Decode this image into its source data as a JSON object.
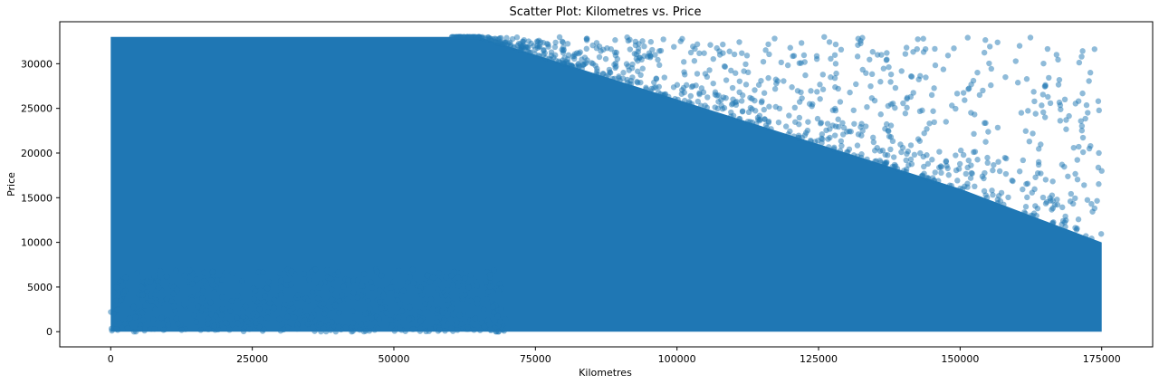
{
  "chart_data": {
    "type": "scatter",
    "title": "Scatter Plot: Kilometres vs. Price",
    "xlabel": "Kilometres",
    "ylabel": "Price",
    "xlim": [
      -9000,
      184000
    ],
    "ylim": [
      -1700,
      34700
    ],
    "x_ticks": [
      0,
      25000,
      50000,
      75000,
      100000,
      125000,
      150000,
      175000
    ],
    "x_tick_labels": [
      "0",
      "25000",
      "50000",
      "75000",
      "100000",
      "125000",
      "150000",
      "175000"
    ],
    "y_ticks": [
      0,
      5000,
      10000,
      15000,
      20000,
      25000,
      30000
    ],
    "y_tick_labels": [
      "0",
      "5000",
      "10000",
      "15000",
      "20000",
      "25000",
      "30000"
    ],
    "grid": false,
    "legend": "none",
    "marker_color": "#1f77b4",
    "marker_alpha": 0.5,
    "x_range_data": [
      0,
      175000
    ],
    "y_range_data": [
      0,
      33000
    ],
    "dense_region": [
      {
        "x": 0,
        "y_low": 0,
        "y_high": 33000
      },
      {
        "x": 65000,
        "y_low": 0,
        "y_high": 33000
      },
      {
        "x": 75000,
        "y_low": 0,
        "y_high": 31000
      },
      {
        "x": 100000,
        "y_low": 0,
        "y_high": 26000
      },
      {
        "x": 125000,
        "y_low": 0,
        "y_high": 21000
      },
      {
        "x": 150000,
        "y_low": 0,
        "y_high": 16000
      },
      {
        "x": 175000,
        "y_low": 0,
        "y_high": 10000
      }
    ],
    "notable_points": [
      {
        "x": 126000,
        "y": 33000
      },
      {
        "x": 132000,
        "y": 32800
      },
      {
        "x": 143500,
        "y": 32800
      },
      {
        "x": 160500,
        "y": 32000
      },
      {
        "x": 173000,
        "y": 29000
      },
      {
        "x": 168500,
        "y": 26000
      },
      {
        "x": 165000,
        "y": 24000
      },
      {
        "x": 158000,
        "y": 28500
      },
      {
        "x": 174500,
        "y": 20000
      },
      {
        "x": 175000,
        "y": 18000
      },
      {
        "x": 154000,
        "y": 27000
      },
      {
        "x": 145000,
        "y": 26500
      },
      {
        "x": 1000,
        "y": 300
      },
      {
        "x": 3000,
        "y": 400
      },
      {
        "x": 30000,
        "y": 100
      },
      {
        "x": 68500,
        "y": 0
      }
    ]
  }
}
